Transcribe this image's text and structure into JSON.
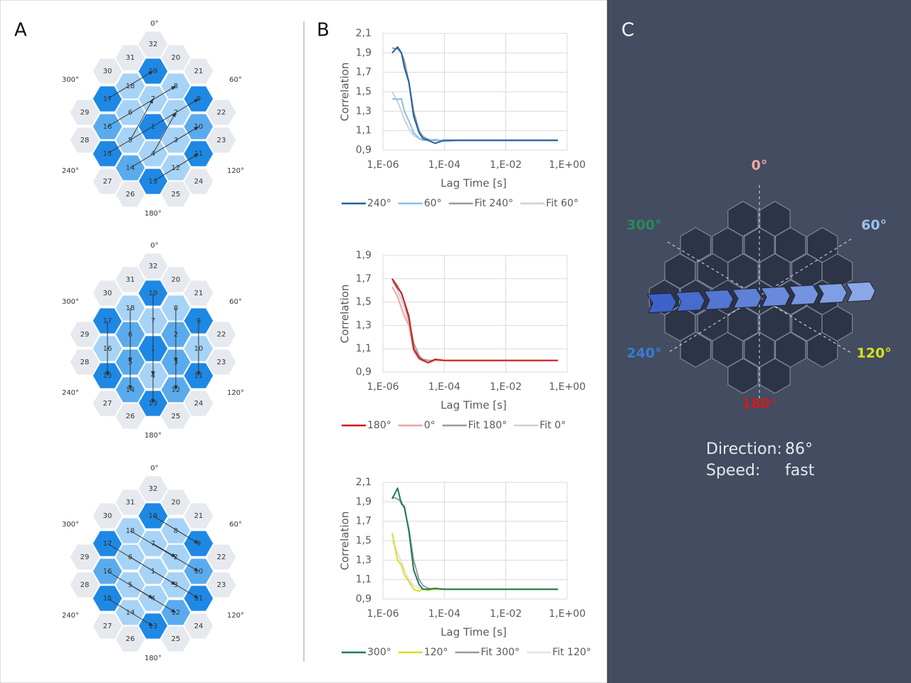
{
  "panel_labels": [
    "A",
    "B",
    "C"
  ],
  "panel_a": {
    "cell_labels": [
      "1",
      "2",
      "3",
      "4",
      "5",
      "6",
      "7",
      "8",
      "9",
      "10",
      "11",
      "12",
      "13",
      "14",
      "15",
      "16",
      "17",
      "18",
      "19",
      "20",
      "21",
      "22",
      "23",
      "24",
      "25",
      "26",
      "27",
      "28",
      "29",
      "30",
      "31",
      "32"
    ],
    "angle_labels": [
      "0°",
      "60°",
      "120°",
      "180°",
      "240°",
      "300°"
    ]
  },
  "chart_data": [
    {
      "type": "line",
      "x_label": "Lag Time [s]",
      "y_label": "Correlation",
      "log_x": true,
      "grid": true,
      "x": [
        2e-06,
        3e-06,
        4e-06,
        5e-06,
        7e-06,
        1e-05,
        1.5e-05,
        2e-05,
        3e-05,
        5e-05,
        0.0001,
        0.0003,
        0.001,
        0.01,
        0.1,
        0.5
      ],
      "xlim": [
        1e-06,
        1
      ],
      "xticks": [
        {
          "value": 1e-06,
          "label": "1,E-06"
        },
        {
          "value": 0.0001,
          "label": "1,E-04"
        },
        {
          "value": 0.01,
          "label": "1,E-02"
        },
        {
          "value": 1,
          "label": "1,E+00"
        }
      ],
      "ylim": [
        0.9,
        2.1
      ],
      "yticks": [
        {
          "value": 0.9,
          "label": "0,9"
        },
        {
          "value": 1.1,
          "label": "1,1"
        },
        {
          "value": 1.3,
          "label": "1,3"
        },
        {
          "value": 1.5,
          "label": "1,5"
        },
        {
          "value": 1.7,
          "label": "1,7"
        },
        {
          "value": 1.9,
          "label": "1,9"
        },
        {
          "value": 2.1,
          "label": "2,1"
        }
      ],
      "series": [
        {
          "name": "240°",
          "color": "#1f5fa8",
          "values": [
            1.9,
            1.96,
            1.9,
            1.75,
            1.6,
            1.25,
            1.08,
            1.02,
            1.0,
            0.97,
            1.0,
            1.0,
            1.0,
            1.0,
            1.0,
            1.0
          ]
        },
        {
          "name": "60°",
          "color": "#8dbbe8",
          "values": [
            1.43,
            1.42,
            1.43,
            1.3,
            1.2,
            1.08,
            1.02,
            1.0,
            1.0,
            1.01,
            0.99,
            1.0,
            1.0,
            1.0,
            1.0,
            1.0
          ]
        },
        {
          "name": "Fit 240°",
          "color": "#9a9a9a",
          "values": [
            1.95,
            1.94,
            1.9,
            1.82,
            1.6,
            1.3,
            1.1,
            1.04,
            1.01,
            1.0,
            1.0,
            1.0,
            1.0,
            1.0,
            1.0,
            1.0
          ]
        },
        {
          "name": "Fit 60°",
          "color": "#cfcfcf",
          "values": [
            1.5,
            1.4,
            1.3,
            1.22,
            1.12,
            1.05,
            1.02,
            1.01,
            1.0,
            1.0,
            1.0,
            1.0,
            1.0,
            1.0,
            1.0,
            1.0
          ]
        }
      ]
    },
    {
      "type": "line",
      "x_label": "Lag Time [s]",
      "y_label": "Correlation",
      "log_x": true,
      "grid": true,
      "x": [
        2e-06,
        3e-06,
        4e-06,
        5e-06,
        7e-06,
        1e-05,
        1.5e-05,
        2e-05,
        3e-05,
        5e-05,
        0.0001,
        0.0003,
        0.001,
        0.01,
        0.1,
        0.5
      ],
      "xlim": [
        1e-06,
        1
      ],
      "xticks": [
        {
          "value": 1e-06,
          "label": "1,E-06"
        },
        {
          "value": 0.0001,
          "label": "1,E-04"
        },
        {
          "value": 0.01,
          "label": "1,E-02"
        },
        {
          "value": 1,
          "label": "1,E+00"
        }
      ],
      "ylim": [
        0.9,
        1.9
      ],
      "yticks": [
        {
          "value": 0.9,
          "label": "0,9"
        },
        {
          "value": 1.1,
          "label": "1,1"
        },
        {
          "value": 1.3,
          "label": "1,3"
        },
        {
          "value": 1.5,
          "label": "1,5"
        },
        {
          "value": 1.7,
          "label": "1,7"
        },
        {
          "value": 1.9,
          "label": "1,9"
        }
      ],
      "series": [
        {
          "name": "180°",
          "color": "#cc1a1a",
          "values": [
            1.7,
            1.62,
            1.58,
            1.5,
            1.38,
            1.1,
            1.02,
            1.0,
            0.98,
            1.01,
            1.0,
            1.0,
            1.0,
            1.0,
            1.0,
            1.0
          ]
        },
        {
          "name": "0°",
          "color": "#f0a0a0",
          "values": [
            1.63,
            1.55,
            1.45,
            1.38,
            1.3,
            1.08,
            1.01,
            1.0,
            0.98,
            1.0,
            1.0,
            1.0,
            1.0,
            1.0,
            1.0,
            1.0
          ]
        },
        {
          "name": "Fit 180°",
          "color": "#9a9a9a",
          "values": [
            1.7,
            1.64,
            1.57,
            1.5,
            1.35,
            1.15,
            1.04,
            1.01,
            1.0,
            1.0,
            1.0,
            1.0,
            1.0,
            1.0,
            1.0,
            1.0
          ]
        },
        {
          "name": "Fit 0°",
          "color": "#cfcfcf",
          "values": [
            1.68,
            1.6,
            1.52,
            1.45,
            1.32,
            1.12,
            1.03,
            1.01,
            1.0,
            1.0,
            1.0,
            1.0,
            1.0,
            1.0,
            1.0,
            1.0
          ]
        }
      ]
    },
    {
      "type": "line",
      "x_label": "Lag Time [s]",
      "y_label": "Correlation",
      "log_x": true,
      "grid": true,
      "x": [
        2e-06,
        3e-06,
        4e-06,
        5e-06,
        7e-06,
        1e-05,
        1.5e-05,
        2e-05,
        3e-05,
        5e-05,
        0.0001,
        0.0003,
        0.001,
        0.01,
        0.1,
        0.5
      ],
      "xlim": [
        1e-06,
        1
      ],
      "xticks": [
        {
          "value": 1e-06,
          "label": "1,E-06"
        },
        {
          "value": 0.0001,
          "label": "1,E-04"
        },
        {
          "value": 0.01,
          "label": "1,E-02"
        },
        {
          "value": 1,
          "label": "1,E+00"
        }
      ],
      "ylim": [
        0.9,
        2.1
      ],
      "yticks": [
        {
          "value": 0.9,
          "label": "0,9"
        },
        {
          "value": 1.1,
          "label": "1,1"
        },
        {
          "value": 1.3,
          "label": "1,3"
        },
        {
          "value": 1.5,
          "label": "1,5"
        },
        {
          "value": 1.7,
          "label": "1,7"
        },
        {
          "value": 1.9,
          "label": "1,9"
        },
        {
          "value": 2.1,
          "label": "2,1"
        }
      ],
      "series": [
        {
          "name": "300°",
          "color": "#1e7a5a",
          "values": [
            1.93,
            2.04,
            1.88,
            1.85,
            1.6,
            1.2,
            1.05,
            1.0,
            1.0,
            1.01,
            1.0,
            1.0,
            1.0,
            1.0,
            1.0,
            1.0
          ]
        },
        {
          "name": "120°",
          "color": "#d8e020",
          "values": [
            1.58,
            1.3,
            1.25,
            1.15,
            1.08,
            1.0,
            0.98,
            1.0,
            0.99,
            1.0,
            1.0,
            1.0,
            1.0,
            1.0,
            1.0,
            1.0
          ]
        },
        {
          "name": "Fit 300°",
          "color": "#9a9a9a",
          "values": [
            1.95,
            1.93,
            1.9,
            1.83,
            1.62,
            1.3,
            1.1,
            1.04,
            1.01,
            1.0,
            1.0,
            1.0,
            1.0,
            1.0,
            1.0,
            1.0
          ]
        },
        {
          "name": "Fit 120°",
          "color": "#e2e2e2",
          "values": [
            1.5,
            1.38,
            1.28,
            1.2,
            1.1,
            1.04,
            1.01,
            1.0,
            1.0,
            1.0,
            1.0,
            1.0,
            1.0,
            1.0,
            1.0,
            1.0
          ]
        }
      ]
    }
  ],
  "panel_c": {
    "angle_labels": [
      "0°",
      "60°",
      "120°",
      "180°",
      "240°",
      "300°"
    ],
    "angle_colors": [
      "#f4a6a6",
      "#9cc3f0",
      "#d6e21b",
      "#d11b1b",
      "#3a7bd5",
      "#2a8a5e"
    ],
    "direction_label": "Direction:",
    "direction": "86°",
    "speed_label": "Speed:",
    "speed": "fast"
  }
}
